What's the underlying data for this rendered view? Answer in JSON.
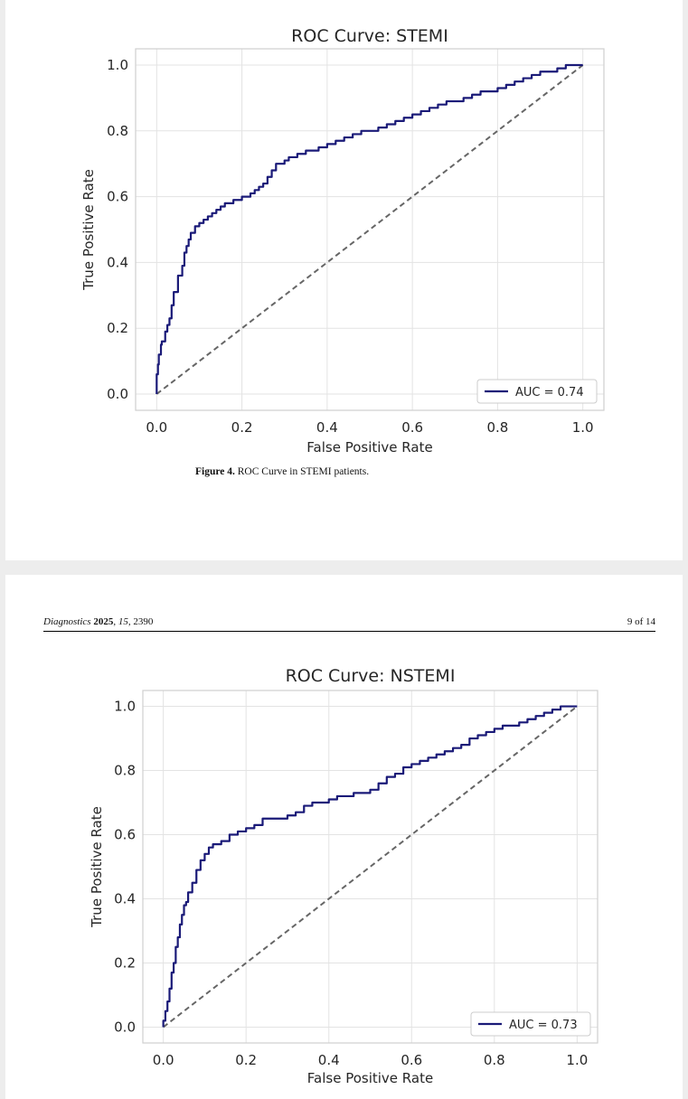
{
  "page_top": {
    "caption_label": "Figure 4.",
    "caption_text": " ROC Curve in STEMI patients."
  },
  "page_bottom": {
    "header_journal": "Diagnostics",
    "header_year": "2025",
    "header_volume": "15",
    "header_article": "2390",
    "header_page": "9 of 14"
  },
  "colors": {
    "curve": "#1a1a78",
    "diagonal": "#666666",
    "grid": "#e3e3e3",
    "frame": "#cfcfcf"
  },
  "chart_data": [
    {
      "type": "line",
      "title": "ROC Curve: STEMI",
      "xlabel": "False Positive Rate",
      "ylabel": "True Positive Rate",
      "xlim": [
        0.0,
        1.0
      ],
      "ylim": [
        0.0,
        1.0
      ],
      "xticks": [
        "0.0",
        "0.2",
        "0.4",
        "0.6",
        "0.8",
        "1.0"
      ],
      "yticks": [
        "0.0",
        "0.2",
        "0.4",
        "0.6",
        "0.8",
        "1.0"
      ],
      "grid": true,
      "legend_position": "bottom-right",
      "series": [
        {
          "name": "AUC = 0.74",
          "x": [
            0,
            0,
            0.003,
            0.005,
            0.01,
            0.012,
            0.02,
            0.025,
            0.03,
            0.035,
            0.04,
            0.05,
            0.06,
            0.065,
            0.07,
            0.075,
            0.08,
            0.09,
            0.1,
            0.11,
            0.12,
            0.13,
            0.14,
            0.15,
            0.16,
            0.17,
            0.18,
            0.2,
            0.22,
            0.23,
            0.24,
            0.25,
            0.26,
            0.27,
            0.28,
            0.3,
            0.31,
            0.32,
            0.33,
            0.35,
            0.37,
            0.38,
            0.4,
            0.42,
            0.44,
            0.46,
            0.48,
            0.5,
            0.52,
            0.54,
            0.56,
            0.58,
            0.6,
            0.62,
            0.64,
            0.66,
            0.68,
            0.7,
            0.72,
            0.74,
            0.76,
            0.78,
            0.8,
            0.82,
            0.84,
            0.86,
            0.88,
            0.9,
            0.92,
            0.94,
            0.96,
            0.98,
            1.0
          ],
          "y": [
            0,
            0.03,
            0.06,
            0.09,
            0.12,
            0.15,
            0.16,
            0.19,
            0.21,
            0.23,
            0.27,
            0.31,
            0.36,
            0.39,
            0.43,
            0.45,
            0.47,
            0.49,
            0.51,
            0.52,
            0.53,
            0.54,
            0.55,
            0.56,
            0.57,
            0.58,
            0.58,
            0.59,
            0.6,
            0.61,
            0.62,
            0.63,
            0.64,
            0.66,
            0.68,
            0.7,
            0.71,
            0.72,
            0.72,
            0.73,
            0.74,
            0.74,
            0.75,
            0.76,
            0.77,
            0.78,
            0.79,
            0.8,
            0.8,
            0.81,
            0.82,
            0.83,
            0.84,
            0.85,
            0.86,
            0.87,
            0.88,
            0.89,
            0.89,
            0.9,
            0.91,
            0.92,
            0.92,
            0.93,
            0.94,
            0.95,
            0.96,
            0.97,
            0.98,
            0.98,
            0.99,
            1.0,
            1.0
          ]
        }
      ]
    },
    {
      "type": "line",
      "title": "ROC Curve: NSTEMI",
      "xlabel": "False Positive Rate",
      "ylabel": "True Positive Rate",
      "xlim": [
        0.0,
        1.0
      ],
      "ylim": [
        0.0,
        1.0
      ],
      "xticks": [
        "0.0",
        "0.2",
        "0.4",
        "0.6",
        "0.8",
        "1.0"
      ],
      "yticks": [
        "0.0",
        "0.2",
        "0.4",
        "0.6",
        "0.8",
        "1.0"
      ],
      "grid": true,
      "legend_position": "bottom-right",
      "series": [
        {
          "name": "AUC = 0.73",
          "x": [
            0,
            0.005,
            0.01,
            0.015,
            0.02,
            0.025,
            0.03,
            0.035,
            0.04,
            0.045,
            0.05,
            0.055,
            0.06,
            0.07,
            0.08,
            0.09,
            0.1,
            0.11,
            0.12,
            0.14,
            0.16,
            0.18,
            0.2,
            0.22,
            0.24,
            0.26,
            0.28,
            0.3,
            0.32,
            0.34,
            0.36,
            0.38,
            0.4,
            0.42,
            0.44,
            0.46,
            0.48,
            0.5,
            0.52,
            0.54,
            0.56,
            0.58,
            0.6,
            0.62,
            0.64,
            0.66,
            0.68,
            0.7,
            0.72,
            0.74,
            0.76,
            0.78,
            0.8,
            0.82,
            0.84,
            0.86,
            0.88,
            0.9,
            0.92,
            0.94,
            0.96,
            0.98,
            1.0
          ],
          "y": [
            0,
            0.02,
            0.05,
            0.08,
            0.12,
            0.17,
            0.2,
            0.25,
            0.28,
            0.32,
            0.35,
            0.38,
            0.39,
            0.42,
            0.45,
            0.49,
            0.52,
            0.54,
            0.56,
            0.57,
            0.58,
            0.6,
            0.61,
            0.62,
            0.63,
            0.65,
            0.65,
            0.65,
            0.66,
            0.67,
            0.69,
            0.7,
            0.7,
            0.71,
            0.72,
            0.72,
            0.73,
            0.73,
            0.74,
            0.76,
            0.78,
            0.79,
            0.81,
            0.82,
            0.83,
            0.84,
            0.85,
            0.86,
            0.87,
            0.88,
            0.9,
            0.91,
            0.92,
            0.93,
            0.94,
            0.94,
            0.95,
            0.96,
            0.97,
            0.98,
            0.99,
            1.0,
            1.0
          ]
        }
      ]
    }
  ]
}
